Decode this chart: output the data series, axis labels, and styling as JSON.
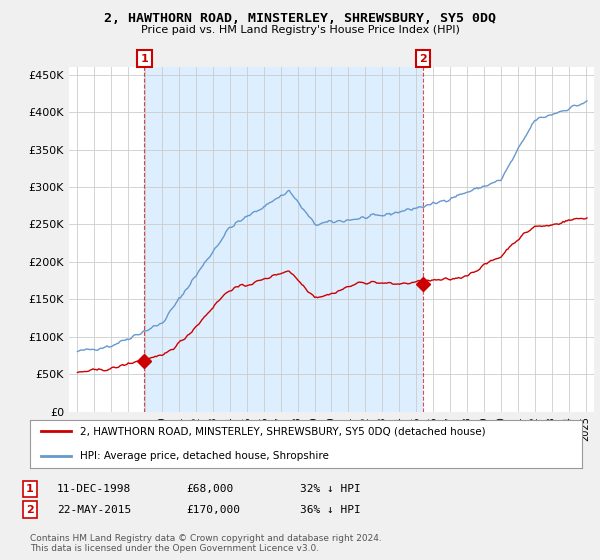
{
  "title": "2, HAWTHORN ROAD, MINSTERLEY, SHREWSBURY, SY5 0DQ",
  "subtitle": "Price paid vs. HM Land Registry's House Price Index (HPI)",
  "legend_line1": "2, HAWTHORN ROAD, MINSTERLEY, SHREWSBURY, SY5 0DQ (detached house)",
  "legend_line2": "HPI: Average price, detached house, Shropshire",
  "footnote": "Contains HM Land Registry data © Crown copyright and database right 2024.\nThis data is licensed under the Open Government Licence v3.0.",
  "annotation1": {
    "label": "1",
    "date": "11-DEC-1998",
    "price": "£68,000",
    "note": "32% ↓ HPI"
  },
  "annotation2": {
    "label": "2",
    "date": "22-MAY-2015",
    "price": "£170,000",
    "note": "36% ↓ HPI"
  },
  "sale1_year": 1998.95,
  "sale1_price": 68000,
  "sale2_year": 2015.39,
  "sale2_price": 170000,
  "hpi_color": "#6699cc",
  "price_color": "#cc0000",
  "shade_color": "#ddeeff",
  "background_color": "#f0f0f0",
  "plot_background": "#ffffff",
  "grid_color": "#cccccc",
  "ylim": [
    0,
    460000
  ],
  "xlim_start": 1994.5,
  "xlim_end": 2025.5
}
